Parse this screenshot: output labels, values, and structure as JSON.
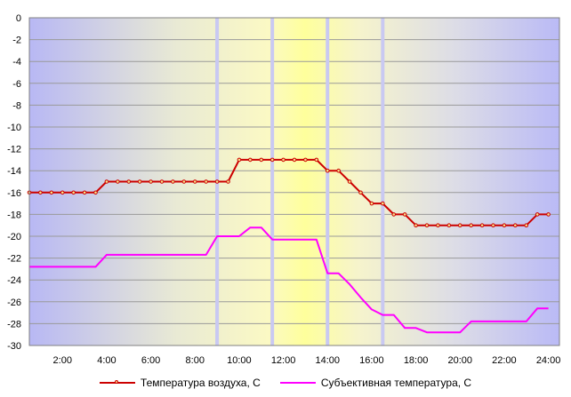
{
  "chart_data": {
    "type": "line",
    "x_tick_labels": [
      "2:00",
      "4:00",
      "6:00",
      "8:00",
      "10:00",
      "12:00",
      "14:00",
      "16:00",
      "18:00",
      "20:00",
      "22:00",
      "24:00"
    ],
    "y_tick_labels": [
      "0",
      "-2",
      "-4",
      "-6",
      "-8",
      "-10",
      "-12",
      "-14",
      "-16",
      "-18",
      "-20",
      "-22",
      "-24",
      "-26",
      "-28",
      "-30"
    ],
    "xlim": [
      0.5,
      24.5
    ],
    "ylim": [
      -30,
      0
    ],
    "grid": true,
    "legend_position": "bottom",
    "background": "gradient from blue-lavender at both edges to yellow in the middle",
    "highlight_lines_x": [
      9.0,
      11.5,
      14.0,
      16.5
    ],
    "series": [
      {
        "name": "Температура воздуха, С",
        "color": "#cc0000",
        "markers": true,
        "points": [
          [
            0.5,
            -16
          ],
          [
            1.0,
            -16
          ],
          [
            1.5,
            -16
          ],
          [
            2.0,
            -16
          ],
          [
            2.5,
            -16
          ],
          [
            3.0,
            -16
          ],
          [
            3.5,
            -16
          ],
          [
            4.0,
            -15
          ],
          [
            4.5,
            -15
          ],
          [
            5.0,
            -15
          ],
          [
            5.5,
            -15
          ],
          [
            6.0,
            -15
          ],
          [
            6.5,
            -15
          ],
          [
            7.0,
            -15
          ],
          [
            7.5,
            -15
          ],
          [
            8.0,
            -15
          ],
          [
            8.5,
            -15
          ],
          [
            9.0,
            -15
          ],
          [
            9.5,
            -15
          ],
          [
            10.0,
            -13
          ],
          [
            10.5,
            -13
          ],
          [
            11.0,
            -13
          ],
          [
            11.5,
            -13
          ],
          [
            12.0,
            -13
          ],
          [
            12.5,
            -13
          ],
          [
            13.0,
            -13
          ],
          [
            13.5,
            -13
          ],
          [
            14.0,
            -14
          ],
          [
            14.5,
            -14
          ],
          [
            15.0,
            -15
          ],
          [
            15.5,
            -16
          ],
          [
            16.0,
            -17
          ],
          [
            16.5,
            -17
          ],
          [
            17.0,
            -18
          ],
          [
            17.5,
            -18
          ],
          [
            18.0,
            -19
          ],
          [
            18.5,
            -19
          ],
          [
            19.0,
            -19
          ],
          [
            19.5,
            -19
          ],
          [
            20.0,
            -19
          ],
          [
            20.5,
            -19
          ],
          [
            21.0,
            -19
          ],
          [
            21.5,
            -19
          ],
          [
            22.0,
            -19
          ],
          [
            22.5,
            -19
          ],
          [
            23.0,
            -19
          ],
          [
            23.5,
            -18
          ],
          [
            24.0,
            -18
          ]
        ]
      },
      {
        "name": "Субъективная температура, С",
        "color": "#ff00ff",
        "markers": false,
        "points": [
          [
            0.5,
            -22.8
          ],
          [
            1.0,
            -22.8
          ],
          [
            2.0,
            -22.8
          ],
          [
            3.0,
            -22.8
          ],
          [
            3.5,
            -22.8
          ],
          [
            4.0,
            -21.7
          ],
          [
            5.0,
            -21.7
          ],
          [
            6.0,
            -21.7
          ],
          [
            7.0,
            -21.7
          ],
          [
            8.0,
            -21.7
          ],
          [
            8.5,
            -21.7
          ],
          [
            9.0,
            -20.0
          ],
          [
            10.0,
            -20.0
          ],
          [
            10.5,
            -19.2
          ],
          [
            11.0,
            -19.2
          ],
          [
            11.5,
            -20.3
          ],
          [
            12.0,
            -20.3
          ],
          [
            13.0,
            -20.3
          ],
          [
            13.5,
            -20.3
          ],
          [
            14.0,
            -23.4
          ],
          [
            14.5,
            -23.4
          ],
          [
            15.0,
            -24.4
          ],
          [
            15.5,
            -25.6
          ],
          [
            16.0,
            -26.7
          ],
          [
            16.5,
            -27.2
          ],
          [
            17.0,
            -27.2
          ],
          [
            17.5,
            -28.4
          ],
          [
            18.0,
            -28.4
          ],
          [
            18.5,
            -28.8
          ],
          [
            19.0,
            -28.8
          ],
          [
            20.0,
            -28.8
          ],
          [
            20.5,
            -27.8
          ],
          [
            21.0,
            -27.8
          ],
          [
            22.0,
            -27.8
          ],
          [
            23.0,
            -27.8
          ],
          [
            23.5,
            -26.6
          ],
          [
            24.0,
            -26.6
          ]
        ]
      }
    ]
  }
}
